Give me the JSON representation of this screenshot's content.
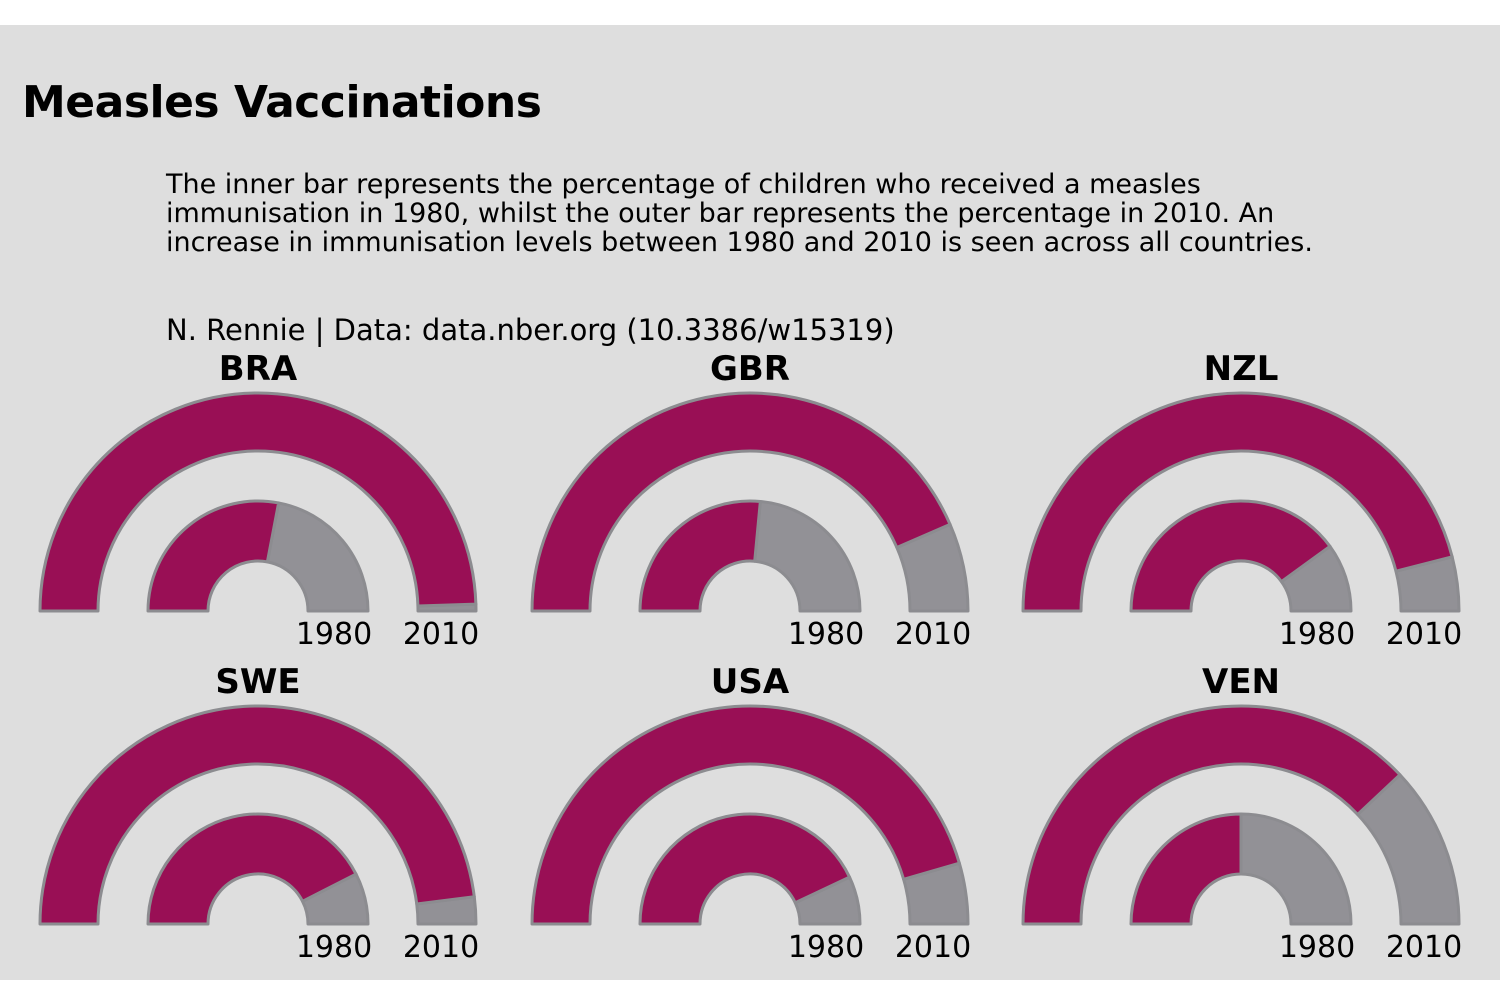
{
  "title": "Measles Vaccinations",
  "subtitle": "The inner bar represents the percentage of children who received a measles immunisation in 1980, whilst the outer bar represents the percentage in 2010. An increase in immunisation levels between 1980 and 2010 is seen across all countries.",
  "caption": "N. Rennie | Data: data.nber.org (10.3386/w15319)",
  "colors": {
    "background": "#dedede",
    "filled": "#990f55",
    "remaining": "#929196",
    "outline": "#8c8c90"
  },
  "chart_data": {
    "type": "radial_bar",
    "ring_labels": [
      "1980",
      "2010"
    ],
    "ylim": [
      0,
      100
    ],
    "series": [
      {
        "name": "1980",
        "ring": "inner"
      },
      {
        "name": "2010",
        "ring": "outer"
      }
    ],
    "facets": [
      {
        "country": "BRA",
        "v1980": 56,
        "v2010": 99
      },
      {
        "country": "GBR",
        "v1980": 53,
        "v2010": 87
      },
      {
        "country": "NZL",
        "v1980": 80,
        "v2010": 92
      },
      {
        "country": "SWE",
        "v1980": 85,
        "v2010": 96
      },
      {
        "country": "USA",
        "v1980": 86,
        "v2010": 91
      },
      {
        "country": "VEN",
        "v1980": 50,
        "v2010": 76
      }
    ]
  }
}
